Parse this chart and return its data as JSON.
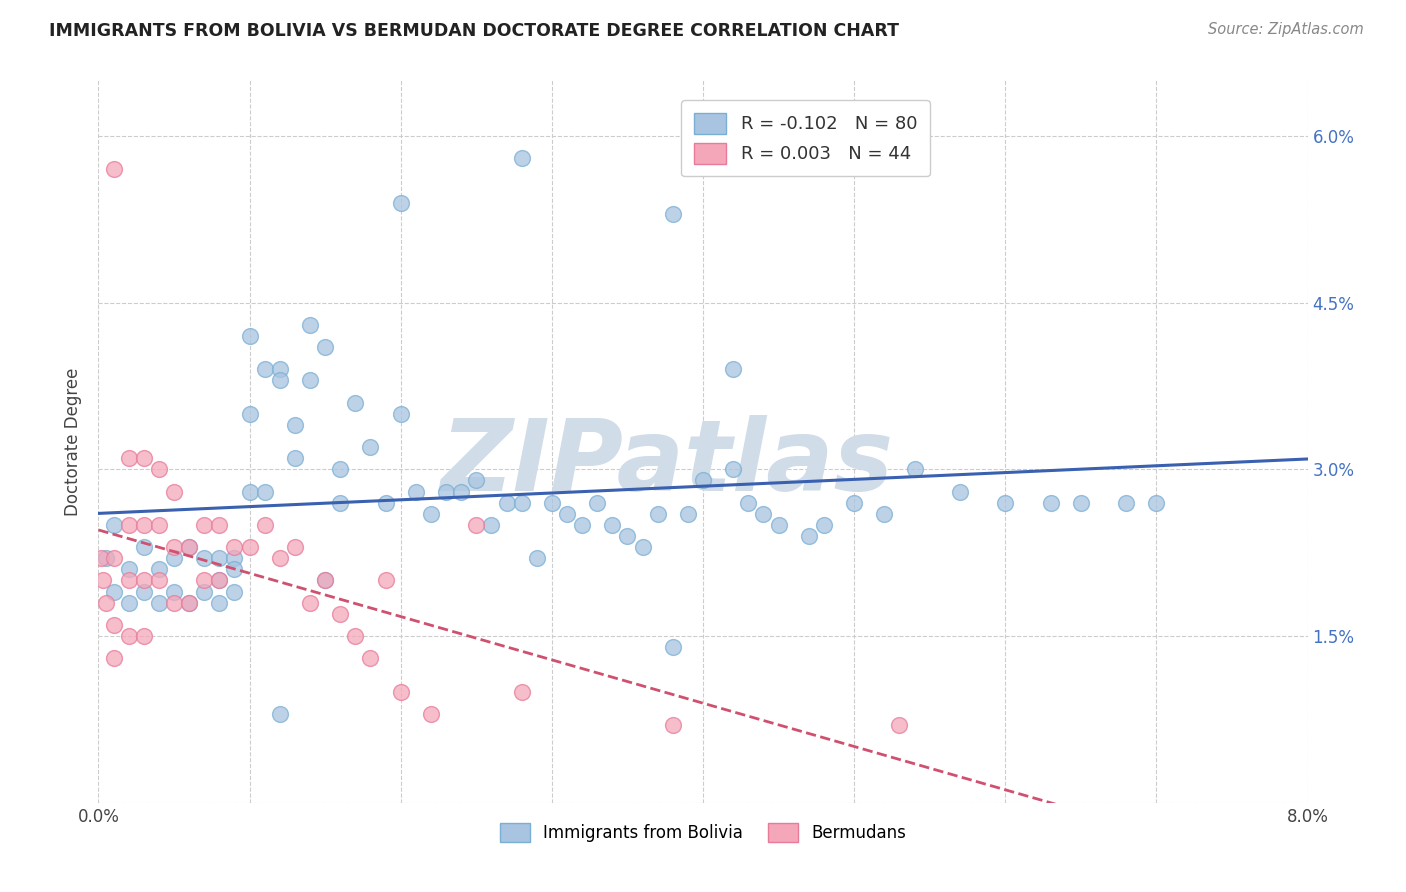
{
  "title": "IMMIGRANTS FROM BOLIVIA VS BERMUDAN DOCTORATE DEGREE CORRELATION CHART",
  "source": "Source: ZipAtlas.com",
  "ylabel": "Doctorate Degree",
  "bolivia_R": -0.102,
  "bolivia_N": 80,
  "bermuda_R": 0.003,
  "bermuda_N": 44,
  "bolivia_color": "#a8c4e0",
  "bolivia_edge_color": "#7aafd4",
  "bermuda_color": "#f4a7b9",
  "bermuda_edge_color": "#e87a9a",
  "bolivia_line_color": "#3a60b0",
  "bermuda_line_color": "#d05070",
  "watermark": "ZIPatlas",
  "watermark_color": "#d0dce8",
  "background_color": "#ffffff",
  "grid_color": "#cccccc",
  "bolivia_x": [
    0.0005,
    0.001,
    0.001,
    0.002,
    0.002,
    0.003,
    0.003,
    0.004,
    0.004,
    0.005,
    0.005,
    0.006,
    0.006,
    0.007,
    0.007,
    0.008,
    0.008,
    0.008,
    0.009,
    0.009,
    0.009,
    0.01,
    0.01,
    0.01,
    0.011,
    0.011,
    0.012,
    0.012,
    0.013,
    0.013,
    0.014,
    0.014,
    0.015,
    0.016,
    0.016,
    0.017,
    0.018,
    0.019,
    0.02,
    0.021,
    0.022,
    0.023,
    0.024,
    0.025,
    0.026,
    0.027,
    0.028,
    0.029,
    0.03,
    0.031,
    0.032,
    0.033,
    0.034,
    0.035,
    0.036,
    0.037,
    0.038,
    0.039,
    0.04,
    0.042,
    0.043,
    0.044,
    0.045,
    0.047,
    0.048,
    0.05,
    0.052,
    0.054,
    0.057,
    0.06,
    0.063,
    0.065,
    0.068,
    0.07,
    0.042,
    0.038,
    0.028,
    0.02,
    0.015,
    0.012
  ],
  "bolivia_y": [
    0.022,
    0.025,
    0.019,
    0.021,
    0.018,
    0.023,
    0.019,
    0.021,
    0.018,
    0.022,
    0.019,
    0.023,
    0.018,
    0.022,
    0.019,
    0.022,
    0.02,
    0.018,
    0.022,
    0.019,
    0.021,
    0.042,
    0.035,
    0.028,
    0.039,
    0.028,
    0.039,
    0.038,
    0.034,
    0.031,
    0.043,
    0.038,
    0.041,
    0.03,
    0.027,
    0.036,
    0.032,
    0.027,
    0.035,
    0.028,
    0.026,
    0.028,
    0.028,
    0.029,
    0.025,
    0.027,
    0.027,
    0.022,
    0.027,
    0.026,
    0.025,
    0.027,
    0.025,
    0.024,
    0.023,
    0.026,
    0.014,
    0.026,
    0.029,
    0.03,
    0.027,
    0.026,
    0.025,
    0.024,
    0.025,
    0.027,
    0.026,
    0.03,
    0.028,
    0.027,
    0.027,
    0.027,
    0.027,
    0.027,
    0.039,
    0.053,
    0.058,
    0.054,
    0.02,
    0.008
  ],
  "bermuda_x": [
    0.0002,
    0.0003,
    0.0005,
    0.001,
    0.001,
    0.001,
    0.001,
    0.002,
    0.002,
    0.002,
    0.002,
    0.003,
    0.003,
    0.003,
    0.003,
    0.004,
    0.004,
    0.004,
    0.005,
    0.005,
    0.005,
    0.006,
    0.006,
    0.007,
    0.007,
    0.008,
    0.008,
    0.009,
    0.01,
    0.011,
    0.012,
    0.013,
    0.014,
    0.015,
    0.016,
    0.017,
    0.018,
    0.019,
    0.02,
    0.022,
    0.025,
    0.028,
    0.038,
    0.053
  ],
  "bermuda_y": [
    0.022,
    0.02,
    0.018,
    0.057,
    0.022,
    0.016,
    0.013,
    0.031,
    0.025,
    0.02,
    0.015,
    0.031,
    0.025,
    0.02,
    0.015,
    0.03,
    0.025,
    0.02,
    0.028,
    0.023,
    0.018,
    0.023,
    0.018,
    0.025,
    0.02,
    0.025,
    0.02,
    0.023,
    0.023,
    0.025,
    0.022,
    0.023,
    0.018,
    0.02,
    0.017,
    0.015,
    0.013,
    0.02,
    0.01,
    0.008,
    0.025,
    0.01,
    0.007,
    0.007
  ],
  "x_ticks": [
    0.0,
    0.01,
    0.02,
    0.03,
    0.04,
    0.05,
    0.06,
    0.07,
    0.08
  ],
  "y_ticks": [
    0.0,
    0.015,
    0.03,
    0.045,
    0.06
  ],
  "legend_r_labels": [
    "R = -0.102   N = 80",
    "R = 0.003   N = 44"
  ]
}
